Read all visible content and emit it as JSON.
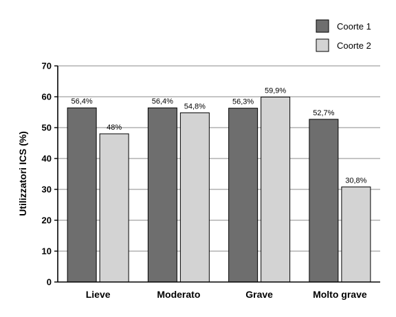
{
  "chart_data": {
    "type": "bar",
    "ylabel": "Utilizzatori ICS (%)",
    "xlabel": "",
    "ylim": [
      0,
      70
    ],
    "yticks": [
      0,
      10,
      20,
      30,
      40,
      50,
      60,
      70
    ],
    "grid": true,
    "legend_position": "top-right",
    "categories": [
      "Lieve",
      "Moderato",
      "Grave",
      "Molto grave"
    ],
    "series": [
      {
        "name": "Coorte 1",
        "color": "#6e6e6e",
        "values": [
          56.4,
          56.4,
          56.3,
          52.7
        ],
        "labels": [
          "56,4%",
          "56,4%",
          "56,3%",
          "52,7%"
        ]
      },
      {
        "name": "Coorte 2",
        "color": "#d3d3d3",
        "values": [
          48,
          54.8,
          59.9,
          30.8
        ],
        "labels": [
          "48%",
          "54,8%",
          "59,9%",
          "30,8%"
        ]
      }
    ]
  }
}
